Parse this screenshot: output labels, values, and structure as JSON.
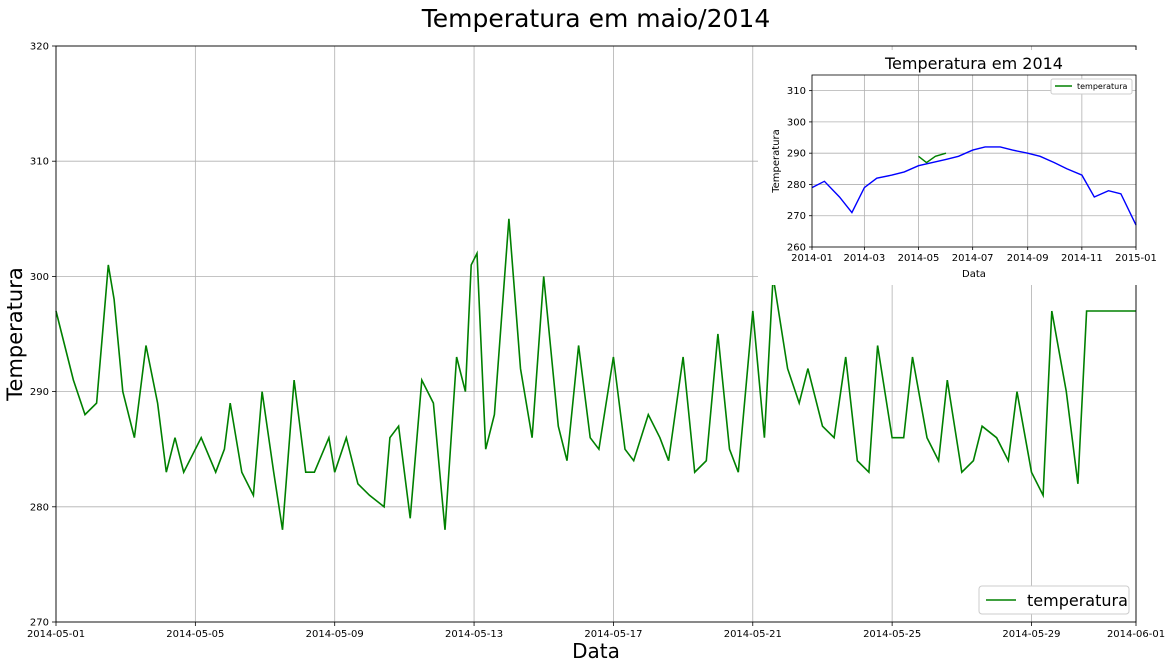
{
  "colors": {
    "main_series": "#008000",
    "inset_series": "#0000ff",
    "grid": "#b0b0b0"
  },
  "chart_data": [
    {
      "type": "line",
      "title": "Temperatura em maio/2014",
      "xlabel": "Data",
      "ylabel": "Temperatura",
      "xlim": [
        "2014-05-01",
        "2014-06-01"
      ],
      "ylim": [
        270,
        320
      ],
      "xticks": [
        "2014-05-01",
        "2014-05-05",
        "2014-05-09",
        "2014-05-13",
        "2014-05-17",
        "2014-05-21",
        "2014-05-25",
        "2014-05-29",
        "2014-06-01"
      ],
      "yticks": [
        270,
        280,
        290,
        300,
        310,
        320
      ],
      "grid": true,
      "legend": "lower-right",
      "series": [
        {
          "name": "temperatura",
          "color": "#008000",
          "x": [
            "2014-05-01",
            "2014-05-01T12",
            "2014-05-01T20",
            "2014-05-02T04",
            "2014-05-02T08",
            "2014-05-02T12",
            "2014-05-02T16",
            "2014-05-02T22",
            "2014-05-03T06",
            "2014-05-03T14",
            "2014-05-03T22",
            "2014-05-04T04",
            "2014-05-04T10",
            "2014-05-04T16",
            "2014-05-05T04",
            "2014-05-05T14",
            "2014-05-05T20",
            "2014-05-06",
            "2014-05-06T08",
            "2014-05-06T16",
            "2014-05-06T22",
            "2014-05-07T06",
            "2014-05-07T12",
            "2014-05-07T20",
            "2014-05-08T04",
            "2014-05-08T10",
            "2014-05-08T20",
            "2014-05-09",
            "2014-05-09T08",
            "2014-05-09T16",
            "2014-05-10",
            "2014-05-10T10",
            "2014-05-10T14",
            "2014-05-10T20",
            "2014-05-11T04",
            "2014-05-11T12",
            "2014-05-11T20",
            "2014-05-12T04",
            "2014-05-12T12",
            "2014-05-12T18",
            "2014-05-12T22",
            "2014-05-13T02",
            "2014-05-13T08",
            "2014-05-13T14",
            "2014-05-14",
            "2014-05-14T08",
            "2014-05-14T16",
            "2014-05-15",
            "2014-05-15T10",
            "2014-05-15T16",
            "2014-05-16",
            "2014-05-16T08",
            "2014-05-16T14",
            "2014-05-17",
            "2014-05-17T08",
            "2014-05-17T14",
            "2014-05-18",
            "2014-05-18T08",
            "2014-05-18T14",
            "2014-05-19",
            "2014-05-19T08",
            "2014-05-19T16",
            "2014-05-20",
            "2014-05-20T08",
            "2014-05-20T14",
            "2014-05-21",
            "2014-05-21T08",
            "2014-05-21T14",
            "2014-05-22",
            "2014-05-22T08",
            "2014-05-22T14",
            "2014-05-23",
            "2014-05-23T08",
            "2014-05-23T16",
            "2014-05-24",
            "2014-05-24T08",
            "2014-05-24T14",
            "2014-05-25",
            "2014-05-25T08",
            "2014-05-25T14",
            "2014-05-26",
            "2014-05-26T08",
            "2014-05-26T14",
            "2014-05-27",
            "2014-05-27T08",
            "2014-05-27T14",
            "2014-05-28",
            "2014-05-28T08",
            "2014-05-28T14",
            "2014-05-29",
            "2014-05-29T08",
            "2014-05-29T14",
            "2014-05-30",
            "2014-05-30T08",
            "2014-05-30T14",
            "2014-05-31",
            "2014-05-31T08",
            "2014-05-31T14",
            "2014-06-01"
          ],
          "y": [
            297,
            291,
            288,
            289,
            295,
            301,
            298,
            290,
            286,
            294,
            289,
            283,
            286,
            283,
            286,
            283,
            285,
            289,
            283,
            281,
            290,
            283,
            278,
            291,
            283,
            283,
            286,
            283,
            286,
            282,
            281,
            280,
            286,
            287,
            279,
            291,
            289,
            278,
            293,
            290,
            301,
            302,
            285,
            288,
            305,
            292,
            286,
            300,
            287,
            284,
            294,
            286,
            285,
            293,
            285,
            284,
            288,
            286,
            284,
            293,
            283,
            284,
            295,
            285,
            283,
            297,
            286,
            300,
            292,
            289,
            292,
            287,
            286,
            293,
            284,
            283,
            294,
            286,
            286,
            293,
            286,
            284,
            291,
            283,
            284,
            287,
            286,
            284,
            290,
            283,
            281,
            297,
            290,
            282,
            297,
            297,
            297,
            297,
            297
          ]
        }
      ]
    },
    {
      "type": "line",
      "title": "Temperatura em 2014",
      "xlabel": "Data",
      "ylabel": "Temperatura",
      "xlim": [
        "2014-01",
        "2015-01"
      ],
      "ylim": [
        260,
        315
      ],
      "xticks": [
        "2014-01",
        "2014-03",
        "2014-05",
        "2014-07",
        "2014-09",
        "2014-11",
        "2015-01"
      ],
      "yticks": [
        260,
        270,
        280,
        290,
        300,
        310
      ],
      "grid": true,
      "legend": "top-right",
      "series": [
        {
          "name": "",
          "color": "#0000ff",
          "x": [
            "2014-01-01",
            "2014-01-15",
            "2014-02-01",
            "2014-02-15",
            "2014-03-01",
            "2014-03-15",
            "2014-04-01",
            "2014-04-15",
            "2014-05-01",
            "2014-06-01",
            "2014-06-15",
            "2014-07-01",
            "2014-07-15",
            "2014-08-01",
            "2014-08-15",
            "2014-09-01",
            "2014-09-15",
            "2014-10-01",
            "2014-10-15",
            "2014-11-01",
            "2014-11-15",
            "2014-12-01",
            "2014-12-15",
            "2015-01-01"
          ],
          "y": [
            279,
            281,
            276,
            271,
            279,
            282,
            283,
            284,
            286,
            288,
            289,
            291,
            292,
            292,
            291,
            290,
            289,
            287,
            285,
            283,
            276,
            278,
            277,
            267
          ]
        },
        {
          "name": "temperatura",
          "color": "#008000",
          "x": [
            "2014-05-01",
            "2014-05-10",
            "2014-05-20",
            "2014-06-01"
          ],
          "y": [
            289,
            287,
            289,
            290
          ]
        }
      ]
    }
  ]
}
